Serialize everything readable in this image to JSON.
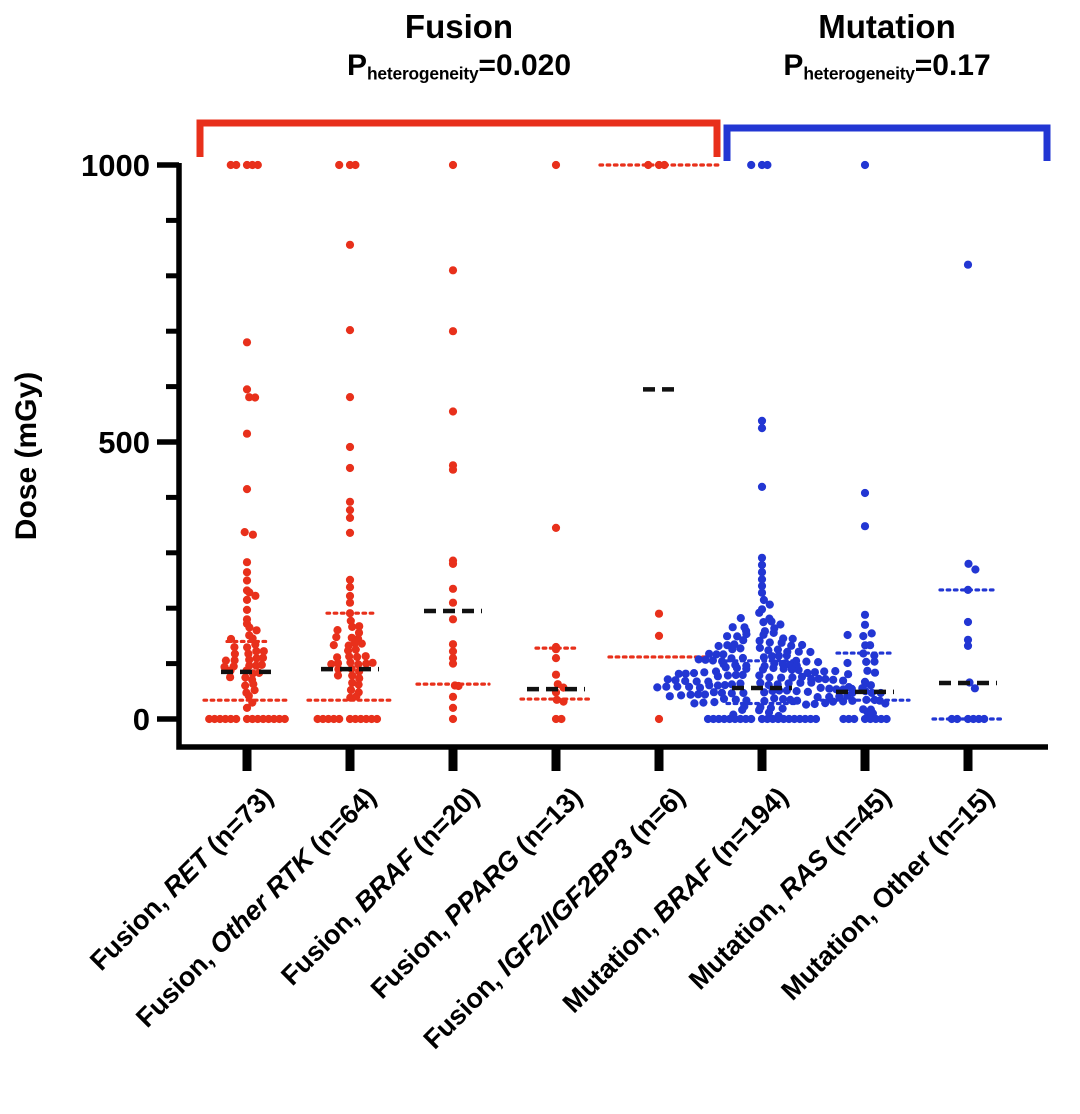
{
  "chart_data": {
    "type": "scatter",
    "title": "",
    "ylabel": "Dose (mGy)",
    "yticks": [
      "0",
      "500",
      "1000"
    ],
    "ytick_values": [
      0,
      500,
      1000
    ],
    "ylim": [
      0,
      1000
    ],
    "minor_tick_step": 100,
    "grid": false,
    "colors": {
      "fusion": "#E8301B",
      "mutation": "#2236D3",
      "median_line": "#111111"
    },
    "groups": [
      {
        "label": "Fusion",
        "p_label": "P",
        "p_sub": "heterogeneity",
        "p_eq": "=0.020",
        "color_key": "fusion"
      },
      {
        "label": "Mutation",
        "p_label": "P",
        "p_sub": "heterogeneity",
        "p_eq": "=0.17",
        "color_key": "mutation"
      }
    ],
    "categories": [
      {
        "label_pre": "Fusion, ",
        "label_gene": "RET",
        "gene_italic": true,
        "label_post": " (n=73)",
        "group": 0,
        "n": 73,
        "median": 85,
        "q1": 34,
        "q3": 140,
        "mw": 52,
        "q1w": 86,
        "q3w": 40,
        "spread": 1.25,
        "values": [
          1000,
          1000,
          1000,
          1000,
          1000,
          680,
          595,
          580,
          578,
          515,
          415,
          338,
          332,
          283,
          265,
          250,
          232,
          228,
          220,
          215,
          197,
          180,
          172,
          165,
          158,
          152,
          148,
          143,
          132,
          132,
          132,
          120,
          120,
          120,
          120,
          108,
          108,
          108,
          108,
          108,
          96,
          96,
          96,
          96,
          96,
          85,
          85,
          85,
          85,
          73,
          73,
          73,
          62,
          62,
          50,
          50,
          40,
          30,
          20,
          0,
          0,
          0,
          0,
          0,
          0,
          0,
          0,
          0,
          0,
          0,
          0,
          0,
          0
        ]
      },
      {
        "label_pre": "Fusion, ",
        "label_gene": "Other RTK",
        "gene_italic": true,
        "label_post": " (n=64)",
        "group": 0,
        "n": 64,
        "median": 90,
        "q1": 34,
        "q3": 191,
        "mw": 58,
        "q1w": 84,
        "q3w": 46,
        "spread": 1.2,
        "values": [
          1000,
          1000,
          1000,
          856,
          702,
          581,
          491,
          453,
          392,
          377,
          363,
          336,
          251,
          238,
          222,
          210,
          191,
          178,
          170,
          164,
          158,
          158,
          146,
          146,
          146,
          135,
          135,
          135,
          135,
          124,
          124,
          112,
          112,
          112,
          112,
          100,
          100,
          100,
          100,
          100,
          100,
          88,
          88,
          88,
          76,
          76,
          76,
          64,
          64,
          50,
          50,
          40,
          40,
          0,
          0,
          0,
          0,
          0,
          0,
          0,
          0,
          0,
          0,
          0
        ]
      },
      {
        "label_pre": "Fusion, ",
        "label_gene": "BRAF",
        "gene_italic": true,
        "label_post": " (n=20)",
        "group": 0,
        "n": 20,
        "median": 195,
        "q1": 63,
        "q3": null,
        "mw": 58,
        "q1w": 72,
        "q3w": 60,
        "spread": 1.0,
        "values": [
          1000,
          810,
          700,
          555,
          458,
          450,
          286,
          280,
          235,
          210,
          180,
          135,
          122,
          110,
          100,
          63,
          58,
          40,
          20,
          0
        ]
      },
      {
        "label_pre": "Fusion, ",
        "label_gene": "PPARG",
        "gene_italic": true,
        "label_post": " (n=13)",
        "group": 0,
        "n": 13,
        "median": 54,
        "q1": 36,
        "q3": 128,
        "mw": 58,
        "q1w": 70,
        "q3w": 40,
        "spread": 1.0,
        "values": [
          1000,
          345,
          130,
          126,
          110,
          80,
          62,
          55,
          48,
          36,
          30,
          0,
          0
        ]
      },
      {
        "label_pre": "Fusion, ",
        "label_gene": "IGF2/IGF2BP3",
        "gene_italic": true,
        "label_post": " (n=6)",
        "group": 0,
        "n": 6,
        "median": 595,
        "q1": 112,
        "q3": 1000,
        "mw": 32,
        "q1w": 100,
        "q3w": 118,
        "spread": 1.0,
        "values": [
          1000,
          1000,
          1000,
          190,
          150,
          0
        ]
      },
      {
        "label_pre": "Mutation, ",
        "label_gene": "BRAF",
        "gene_italic": true,
        "label_post": " (n=194)",
        "group": 1,
        "n": 194,
        "median": 56,
        "q1": 28,
        "q3": 105,
        "mw": 60,
        "q1w": 70,
        "q3w": 70,
        "spread": 1.6,
        "values": [
          1000,
          1000,
          1000,
          538,
          525,
          419,
          291,
          278,
          265,
          252,
          240,
          228,
          217,
          207,
          198,
          190,
          182,
          182,
          175,
          175,
          168,
          168,
          168,
          161,
          161,
          161,
          154,
          154,
          154,
          147,
          147,
          147,
          147,
          140,
          140,
          140,
          140,
          133,
          133,
          133,
          133,
          133,
          126,
          126,
          126,
          126,
          126,
          119,
          119,
          119,
          119,
          119,
          119,
          112,
          112,
          112,
          112,
          112,
          112,
          105,
          105,
          105,
          105,
          105,
          105,
          105,
          98,
          98,
          98,
          98,
          98,
          98,
          98,
          98,
          91,
          91,
          91,
          91,
          91,
          91,
          91,
          91,
          84,
          84,
          84,
          84,
          84,
          84,
          84,
          84,
          84,
          77,
          77,
          77,
          77,
          77,
          77,
          77,
          77,
          77,
          70,
          70,
          70,
          70,
          70,
          70,
          70,
          70,
          70,
          70,
          63,
          63,
          63,
          63,
          63,
          63,
          63,
          63,
          63,
          63,
          63,
          56,
          56,
          56,
          56,
          56,
          56,
          56,
          56,
          56,
          56,
          56,
          49,
          49,
          49,
          49,
          49,
          49,
          49,
          49,
          49,
          49,
          42,
          42,
          42,
          42,
          42,
          42,
          42,
          42,
          42,
          35,
          35,
          35,
          35,
          35,
          35,
          35,
          35,
          28,
          28,
          28,
          28,
          28,
          28,
          21,
          21,
          21,
          21,
          14,
          14,
          14,
          7,
          7,
          0,
          0,
          0,
          0,
          0,
          0,
          0,
          0,
          0,
          0,
          0,
          0,
          0,
          0,
          0,
          0,
          0,
          0,
          0,
          0
        ]
      },
      {
        "label_pre": "Mutation, ",
        "label_gene": "RAS",
        "gene_italic": true,
        "label_post": " (n=45)",
        "group": 1,
        "n": 45,
        "median": 49,
        "q1": 34,
        "q3": 119,
        "mw": 58,
        "q1w": 88,
        "q3w": 56,
        "spread": 1.3,
        "values": [
          1000,
          408,
          348,
          188,
          170,
          152,
          152,
          150,
          134,
          132,
          119,
          117,
          103,
          103,
          100,
          85,
          85,
          82,
          67,
          65,
          62,
          55,
          49,
          49,
          47,
          45,
          34,
          34,
          34,
          32,
          32,
          30,
          30,
          20,
          18,
          10,
          8,
          0,
          0,
          0,
          0,
          0,
          0,
          0,
          0
        ]
      },
      {
        "label_pre": "Mutation, ",
        "label_gene": "Other",
        "gene_italic": false,
        "label_post": " (n=15)",
        "group": 1,
        "n": 15,
        "median": 65,
        "q1": 0,
        "q3": 233,
        "mw": 58,
        "q1w": 70,
        "q3w": 56,
        "spread": 1.0,
        "values": [
          820,
          278,
          272,
          233,
          175,
          143,
          132,
          65,
          58,
          0,
          0,
          0,
          0,
          0,
          0
        ]
      }
    ]
  }
}
